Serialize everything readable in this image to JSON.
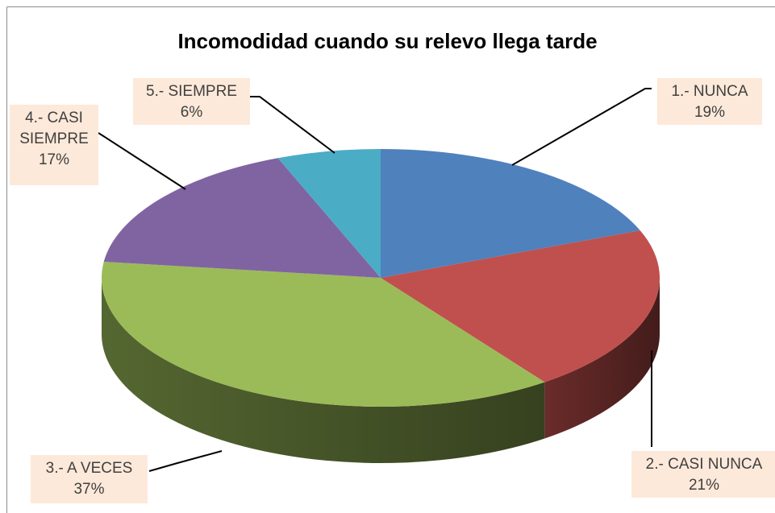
{
  "chart_data": {
    "type": "pie3d",
    "title": "Incomodidad  cuando su relevo llega tarde",
    "categories": [
      "1.- NUNCA",
      "2.- CASI NUNCA",
      "3.- A VECES",
      "4.- CASI SIEMPRE",
      "5.- SIEMPRE"
    ],
    "values": [
      19,
      21,
      37,
      17,
      6
    ],
    "value_labels": [
      "19%",
      "21%",
      "37%",
      "17%",
      "6%"
    ],
    "colors": [
      "#4f81bd",
      "#c0504d",
      "#9bbb59",
      "#8064a2",
      "#4bacc6"
    ]
  }
}
